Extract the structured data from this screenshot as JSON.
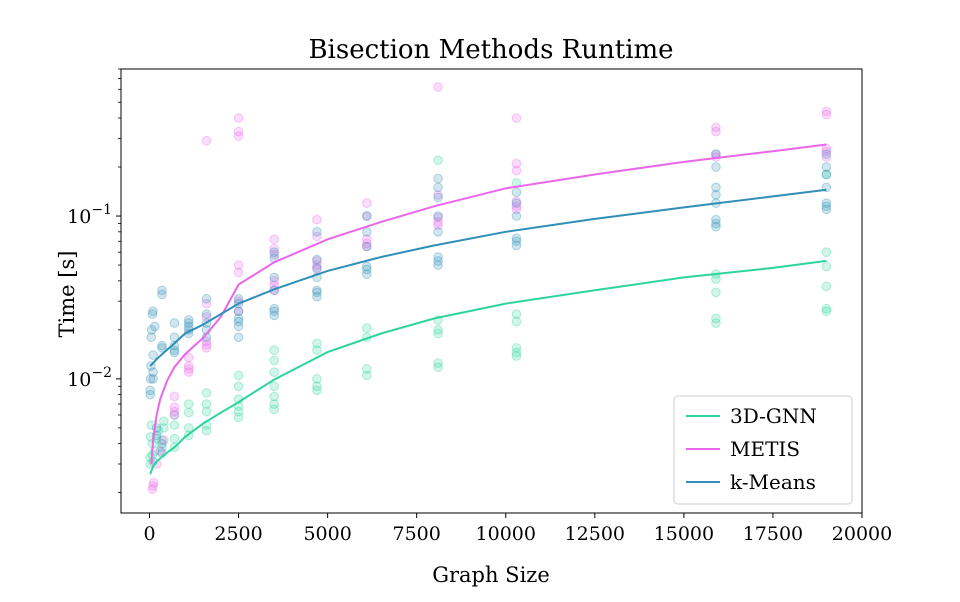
{
  "chart_data": {
    "type": "scatter",
    "title": "Bisection Methods Runtime",
    "xlabel": "Graph Size",
    "ylabel": "Time [s]",
    "xlim": [
      -800,
      20000
    ],
    "ylim": [
      0.0015,
      0.8
    ],
    "yscale": "log",
    "legend_position": "bottom-right",
    "x_ticks": [
      {
        "value": 0,
        "label": "0"
      },
      {
        "value": 2500,
        "label": "2500"
      },
      {
        "value": 5000,
        "label": "5000"
      },
      {
        "value": 7500,
        "label": "7500"
      },
      {
        "value": 10000,
        "label": "10000"
      },
      {
        "value": 12500,
        "label": "12500"
      },
      {
        "value": 15000,
        "label": "15000"
      },
      {
        "value": 17500,
        "label": "17500"
      },
      {
        "value": 20000,
        "label": "20000"
      }
    ],
    "y_ticks": [
      {
        "value": 0.01,
        "base": "10",
        "exp": "−2"
      },
      {
        "value": 0.1,
        "base": "10",
        "exp": "−1"
      }
    ],
    "series": [
      {
        "name": "3D-GNN",
        "color": "#2ed49a",
        "fit_x": [
          20,
          100,
          200,
          400,
          700,
          1000,
          1500,
          2000,
          2500,
          3500,
          5000,
          6500,
          8000,
          10000,
          12500,
          15000,
          17500,
          19000
        ],
        "fit_y": [
          0.0026,
          0.0029,
          0.0031,
          0.0034,
          0.0038,
          0.0044,
          0.0053,
          0.0062,
          0.0072,
          0.0099,
          0.0146,
          0.019,
          0.0235,
          0.029,
          0.035,
          0.042,
          0.048,
          0.053
        ],
        "points": [
          [
            20,
            0.003
          ],
          [
            20,
            0.0033
          ],
          [
            30,
            0.0044
          ],
          [
            50,
            0.0052
          ],
          [
            80,
            0.0034
          ],
          [
            80,
            0.004
          ],
          [
            100,
            0.0031
          ],
          [
            150,
            0.0036
          ],
          [
            200,
            0.0043
          ],
          [
            250,
            0.0048
          ],
          [
            350,
            0.0038
          ],
          [
            350,
            0.0042
          ],
          [
            400,
            0.005
          ],
          [
            400,
            0.0055
          ],
          [
            700,
            0.0038
          ],
          [
            700,
            0.0043
          ],
          [
            700,
            0.0052
          ],
          [
            700,
            0.006
          ],
          [
            1100,
            0.0045
          ],
          [
            1100,
            0.005
          ],
          [
            1100,
            0.0062
          ],
          [
            1100,
            0.007
          ],
          [
            1600,
            0.0048
          ],
          [
            1600,
            0.0052
          ],
          [
            1600,
            0.0063
          ],
          [
            1600,
            0.007
          ],
          [
            1600,
            0.0082
          ],
          [
            2500,
            0.0058
          ],
          [
            2500,
            0.0063
          ],
          [
            2500,
            0.0068
          ],
          [
            2500,
            0.0075
          ],
          [
            2500,
            0.009
          ],
          [
            2500,
            0.0105
          ],
          [
            3500,
            0.0065
          ],
          [
            3500,
            0.007
          ],
          [
            3500,
            0.0078
          ],
          [
            3500,
            0.009
          ],
          [
            3500,
            0.011
          ],
          [
            3500,
            0.013
          ],
          [
            3500,
            0.015
          ],
          [
            4700,
            0.0085
          ],
          [
            4700,
            0.009
          ],
          [
            4700,
            0.01
          ],
          [
            4700,
            0.015
          ],
          [
            4700,
            0.0165
          ],
          [
            6100,
            0.0105
          ],
          [
            6100,
            0.0115
          ],
          [
            6100,
            0.018
          ],
          [
            6100,
            0.0205
          ],
          [
            8100,
            0.0118
          ],
          [
            8100,
            0.0125
          ],
          [
            8100,
            0.019
          ],
          [
            8100,
            0.02
          ],
          [
            8100,
            0.023
          ],
          [
            8100,
            0.22
          ],
          [
            10300,
            0.0138
          ],
          [
            10300,
            0.0145
          ],
          [
            10300,
            0.0155
          ],
          [
            10300,
            0.0225
          ],
          [
            10300,
            0.025
          ],
          [
            10300,
            0.16
          ],
          [
            15900,
            0.022
          ],
          [
            15900,
            0.0235
          ],
          [
            15900,
            0.034
          ],
          [
            15900,
            0.041
          ],
          [
            15900,
            0.044
          ],
          [
            19000,
            0.026
          ],
          [
            19000,
            0.027
          ],
          [
            19000,
            0.037
          ],
          [
            19000,
            0.049
          ],
          [
            19000,
            0.06
          ],
          [
            19000,
            0.18
          ]
        ]
      },
      {
        "name": "METIS",
        "color": "#ea66ea",
        "fit_x": [
          50,
          100,
          200,
          300,
          500,
          700,
          1000,
          1500,
          2000,
          2500,
          3500,
          5000,
          6500,
          8000,
          10000,
          12500,
          15000,
          17500,
          19000
        ],
        "fit_y": [
          0.003,
          0.0042,
          0.006,
          0.0075,
          0.0098,
          0.0118,
          0.0142,
          0.0178,
          0.024,
          0.038,
          0.052,
          0.072,
          0.092,
          0.115,
          0.148,
          0.18,
          0.215,
          0.25,
          0.275
        ],
        "points": [
          [
            80,
            0.0021
          ],
          [
            100,
            0.0022
          ],
          [
            120,
            0.0023
          ],
          [
            200,
            0.003
          ],
          [
            300,
            0.0036
          ],
          [
            400,
            0.0042
          ],
          [
            700,
            0.006
          ],
          [
            700,
            0.0063
          ],
          [
            700,
            0.0067
          ],
          [
            700,
            0.0078
          ],
          [
            1100,
            0.011
          ],
          [
            1100,
            0.0115
          ],
          [
            1100,
            0.012
          ],
          [
            1100,
            0.0135
          ],
          [
            1600,
            0.0155
          ],
          [
            1600,
            0.0162
          ],
          [
            1600,
            0.017
          ],
          [
            1600,
            0.024
          ],
          [
            1600,
            0.029
          ],
          [
            1600,
            0.29
          ],
          [
            2500,
            0.026
          ],
          [
            2500,
            0.03
          ],
          [
            2500,
            0.045
          ],
          [
            2500,
            0.05
          ],
          [
            2500,
            0.31
          ],
          [
            2500,
            0.33
          ],
          [
            2500,
            0.4
          ],
          [
            3500,
            0.035
          ],
          [
            3500,
            0.0375
          ],
          [
            3500,
            0.04
          ],
          [
            3500,
            0.058
          ],
          [
            3500,
            0.063
          ],
          [
            3500,
            0.072
          ],
          [
            4700,
            0.047
          ],
          [
            4700,
            0.05
          ],
          [
            4700,
            0.053
          ],
          [
            4700,
            0.075
          ],
          [
            4700,
            0.095
          ],
          [
            6100,
            0.065
          ],
          [
            6100,
            0.068
          ],
          [
            6100,
            0.072
          ],
          [
            6100,
            0.1
          ],
          [
            6100,
            0.12
          ],
          [
            8100,
            0.088
          ],
          [
            8100,
            0.092
          ],
          [
            8100,
            0.098
          ],
          [
            8100,
            0.135
          ],
          [
            8100,
            0.62
          ],
          [
            10300,
            0.11
          ],
          [
            10300,
            0.115
          ],
          [
            10300,
            0.123
          ],
          [
            10300,
            0.19
          ],
          [
            10300,
            0.21
          ],
          [
            10300,
            0.4
          ],
          [
            15900,
            0.23
          ],
          [
            15900,
            0.24
          ],
          [
            15900,
            0.33
          ],
          [
            15900,
            0.35
          ],
          [
            19000,
            0.23
          ],
          [
            19000,
            0.25
          ],
          [
            19000,
            0.26
          ],
          [
            19000,
            0.42
          ],
          [
            19000,
            0.44
          ]
        ]
      },
      {
        "name": "k-Means",
        "color": "#2f8fb8",
        "fit_x": [
          20,
          100,
          200,
          400,
          700,
          1000,
          1500,
          2000,
          2500,
          3500,
          5000,
          6500,
          8000,
          10000,
          12500,
          15000,
          17500,
          19000
        ],
        "fit_y": [
          0.012,
          0.0125,
          0.0132,
          0.0145,
          0.0165,
          0.019,
          0.0215,
          0.025,
          0.029,
          0.0355,
          0.046,
          0.056,
          0.066,
          0.08,
          0.096,
          0.113,
          0.132,
          0.145
        ],
        "points": [
          [
            20,
            0.008
          ],
          [
            20,
            0.0085
          ],
          [
            30,
            0.01
          ],
          [
            40,
            0.012
          ],
          [
            50,
            0.018
          ],
          [
            60,
            0.02
          ],
          [
            80,
            0.025
          ],
          [
            100,
            0.01
          ],
          [
            100,
            0.011
          ],
          [
            100,
            0.014
          ],
          [
            100,
            0.026
          ],
          [
            150,
            0.021
          ],
          [
            200,
            0.005
          ],
          [
            200,
            0.0045
          ],
          [
            350,
            0.0035
          ],
          [
            350,
            0.004
          ],
          [
            350,
            0.0155
          ],
          [
            350,
            0.016
          ],
          [
            350,
            0.033
          ],
          [
            350,
            0.035
          ],
          [
            700,
            0.0145
          ],
          [
            700,
            0.015
          ],
          [
            700,
            0.016
          ],
          [
            700,
            0.018
          ],
          [
            700,
            0.022
          ],
          [
            1100,
            0.019
          ],
          [
            1100,
            0.02
          ],
          [
            1100,
            0.021
          ],
          [
            1100,
            0.022
          ],
          [
            1100,
            0.023
          ],
          [
            1600,
            0.018
          ],
          [
            1600,
            0.02
          ],
          [
            1600,
            0.022
          ],
          [
            1600,
            0.025
          ],
          [
            1600,
            0.031
          ],
          [
            2500,
            0.018
          ],
          [
            2500,
            0.021
          ],
          [
            2500,
            0.0225
          ],
          [
            2500,
            0.0235
          ],
          [
            2500,
            0.026
          ],
          [
            2500,
            0.029
          ],
          [
            2500,
            0.031
          ],
          [
            3500,
            0.0245
          ],
          [
            3500,
            0.026
          ],
          [
            3500,
            0.027
          ],
          [
            3500,
            0.035
          ],
          [
            3500,
            0.042
          ],
          [
            3500,
            0.055
          ],
          [
            3500,
            0.06
          ],
          [
            4700,
            0.032
          ],
          [
            4700,
            0.034
          ],
          [
            4700,
            0.035
          ],
          [
            4700,
            0.042
          ],
          [
            4700,
            0.048
          ],
          [
            4700,
            0.054
          ],
          [
            4700,
            0.08
          ],
          [
            6100,
            0.044
          ],
          [
            6100,
            0.047
          ],
          [
            6100,
            0.049
          ],
          [
            6100,
            0.065
          ],
          [
            6100,
            0.08
          ],
          [
            6100,
            0.1
          ],
          [
            8100,
            0.05
          ],
          [
            8100,
            0.053
          ],
          [
            8100,
            0.056
          ],
          [
            8100,
            0.08
          ],
          [
            8100,
            0.1
          ],
          [
            8100,
            0.13
          ],
          [
            8100,
            0.15
          ],
          [
            8100,
            0.17
          ],
          [
            10300,
            0.066
          ],
          [
            10300,
            0.07
          ],
          [
            10300,
            0.073
          ],
          [
            10300,
            0.1
          ],
          [
            10300,
            0.12
          ],
          [
            10300,
            0.14
          ],
          [
            15900,
            0.086
          ],
          [
            15900,
            0.09
          ],
          [
            15900,
            0.095
          ],
          [
            15900,
            0.12
          ],
          [
            15900,
            0.135
          ],
          [
            15900,
            0.15
          ],
          [
            15900,
            0.2
          ],
          [
            15900,
            0.24
          ],
          [
            19000,
            0.11
          ],
          [
            19000,
            0.115
          ],
          [
            19000,
            0.12
          ],
          [
            19000,
            0.15
          ],
          [
            19000,
            0.18
          ],
          [
            19000,
            0.2
          ],
          [
            19000,
            0.24
          ]
        ]
      }
    ]
  }
}
